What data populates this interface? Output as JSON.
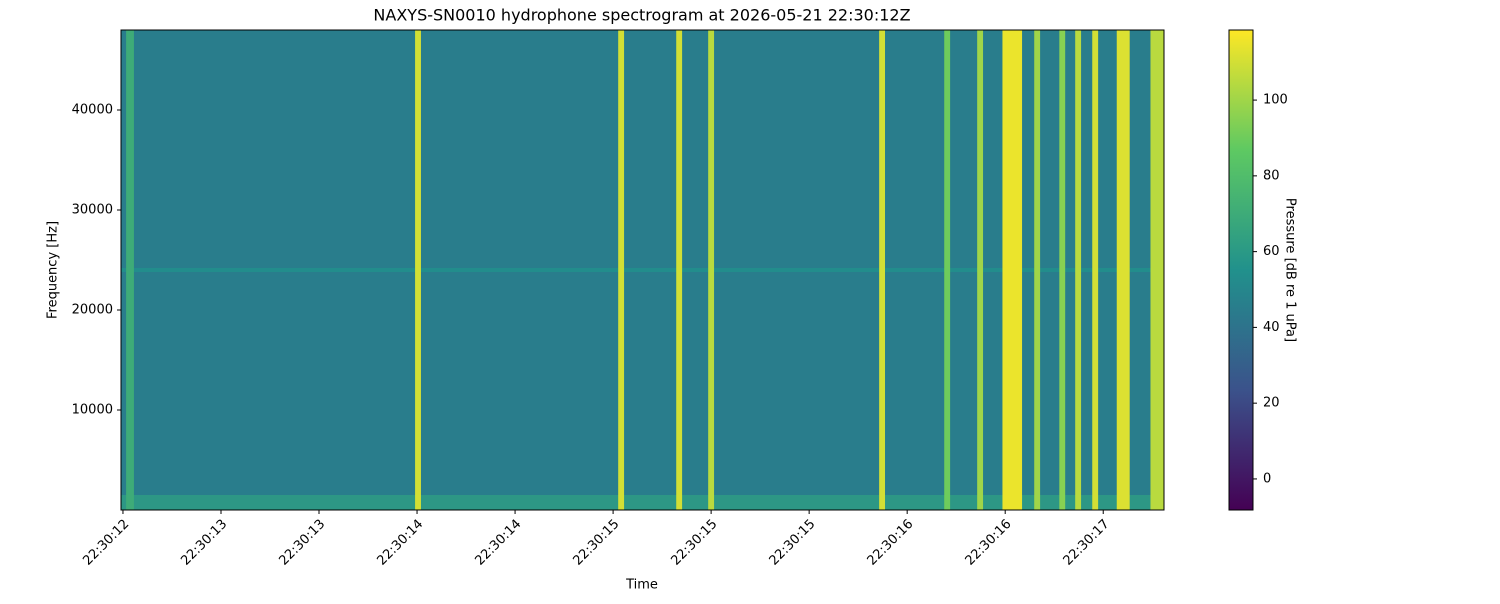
{
  "chart_data": {
    "type": "spectrogram",
    "title": "NAXYS-SN0010 hydrophone spectrogram at 2026-05-21 22:30:12Z",
    "xlabel": "Time",
    "ylabel": "Frequency [Hz]",
    "colorbar_label": "Pressure [dB re 1 uPa]",
    "colormap": "viridis",
    "xlim": [
      -0.01,
      5.31
    ],
    "xticks": [
      {
        "value": 0,
        "label": "22:30:12"
      },
      {
        "value": 0.5,
        "label": "22:30:13"
      },
      {
        "value": 1.0,
        "label": "22:30:13"
      },
      {
        "value": 1.5,
        "label": "22:30:14"
      },
      {
        "value": 2.0,
        "label": "22:30:14"
      },
      {
        "value": 2.5,
        "label": "22:30:15"
      },
      {
        "value": 3.0,
        "label": "22:30:15"
      },
      {
        "value": 3.5,
        "label": "22:30:15"
      },
      {
        "value": 4.0,
        "label": "22:30:16"
      },
      {
        "value": 4.5,
        "label": "22:30:16"
      },
      {
        "value": 5.0,
        "label": "22:30:17"
      }
    ],
    "ylim": [
      0,
      48000
    ],
    "yticks": [
      10000,
      20000,
      30000,
      40000
    ],
    "clim": [
      -8.2,
      118.5
    ],
    "cticks": [
      0,
      20,
      40,
      60,
      80,
      100
    ],
    "background": 45,
    "low_band": {
      "frequency": 1500,
      "value": 62
    },
    "tone": {
      "frequency": 24000,
      "value": 55
    },
    "events": {
      "x": [
        0.036,
        1.505,
        2.541,
        2.837,
        3.0,
        3.872,
        4.204,
        4.372,
        4.536,
        4.663,
        4.791,
        4.872,
        4.959,
        5.102,
        5.276
      ],
      "widths": [
        0.04,
        0.03,
        0.03,
        0.03,
        0.03,
        0.03,
        0.03,
        0.03,
        0.1,
        0.03,
        0.03,
        0.03,
        0.03,
        0.066,
        0.07
      ],
      "values": [
        70,
        110,
        110,
        110,
        105,
        110,
        90,
        100,
        115,
        100,
        95,
        105,
        110,
        112,
        105
      ]
    }
  }
}
